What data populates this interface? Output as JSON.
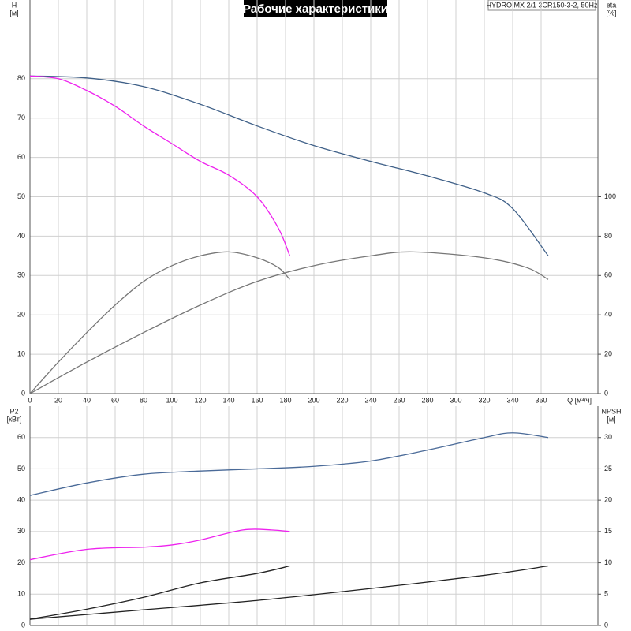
{
  "chart_data": [
    {
      "type": "line",
      "title": "Рабочие характеристики",
      "annotation": "HYDRO MX 2/1 3CR150-3-2, 50Hz",
      "xlabel": "Q [м³/ч]",
      "ylabel": "H",
      "yunit": "[м]",
      "y2label": "eta",
      "y2unit": "[%]",
      "xlim": [
        0,
        400
      ],
      "xticks": [
        0,
        20,
        40,
        60,
        80,
        100,
        120,
        140,
        160,
        180,
        200,
        220,
        240,
        260,
        280,
        300,
        320,
        340,
        360
      ],
      "ylim": [
        0,
        100
      ],
      "yticks": [
        0,
        10,
        20,
        30,
        40,
        50,
        60,
        70,
        80
      ],
      "y2lim": [
        0,
        200
      ],
      "y2ticks": [
        0,
        20,
        40,
        60,
        80,
        100
      ],
      "grid": true,
      "series": [
        {
          "color": "#3f6088",
          "x": [
            0,
            40,
            80,
            120,
            160,
            200,
            240,
            280,
            320,
            340,
            365
          ],
          "values": [
            80.7,
            80.2,
            78,
            73.5,
            68,
            63,
            59,
            55.3,
            51,
            47,
            35
          ]
        },
        {
          "color": "#ee22ee",
          "x": [
            0,
            20,
            40,
            60,
            80,
            100,
            120,
            140,
            160,
            175,
            183
          ],
          "values": [
            80.7,
            80,
            77,
            73,
            68,
            63.5,
            59,
            55.5,
            50,
            42,
            35
          ]
        },
        {
          "color": "#777777",
          "axis": "y2",
          "x": [
            0,
            20,
            40,
            60,
            80,
            100,
            120,
            140,
            160,
            175,
            183
          ],
          "values": [
            0,
            16,
            31,
            45,
            57,
            65,
            70,
            72,
            69,
            64,
            58
          ]
        },
        {
          "color": "#777777",
          "axis": "y2",
          "x": [
            0,
            40,
            80,
            120,
            160,
            200,
            240,
            270,
            320,
            350,
            365
          ],
          "values": [
            0,
            16,
            31,
            45,
            57,
            65,
            70,
            72,
            69,
            64,
            58
          ]
        }
      ]
    },
    {
      "type": "line",
      "ylabel": "P2",
      "yunit": "[кВт]",
      "y2label": "NPSH",
      "y2unit": "[м]",
      "xlim": [
        0,
        400
      ],
      "xticks": [
        0,
        20,
        40,
        60,
        80,
        100,
        120,
        140,
        160,
        180,
        200,
        220,
        240,
        260,
        280,
        300,
        320,
        340,
        360
      ],
      "ylim": [
        0,
        70
      ],
      "yticks": [
        0,
        10,
        20,
        30,
        40,
        50,
        60
      ],
      "y2lim": [
        0,
        35
      ],
      "y2ticks": [
        0,
        5,
        10,
        15,
        20,
        25,
        30
      ],
      "grid": true,
      "series": [
        {
          "color": "#4a6a98",
          "x": [
            0,
            40,
            80,
            120,
            160,
            200,
            240,
            280,
            320,
            340,
            365
          ],
          "values": [
            41.5,
            45.5,
            48.3,
            49.3,
            50,
            50.8,
            52.5,
            56,
            60,
            61.5,
            60
          ]
        },
        {
          "color": "#ee22ee",
          "x": [
            0,
            40,
            80,
            100,
            120,
            150,
            170,
            183
          ],
          "values": [
            21,
            24.3,
            25,
            25.7,
            27.3,
            30.5,
            30.5,
            30
          ]
        },
        {
          "color": "#222222",
          "axis": "y2",
          "x": [
            0,
            40,
            80,
            120,
            160,
            183
          ],
          "values": [
            1,
            2.6,
            4.5,
            6.8,
            8.3,
            9.5
          ]
        },
        {
          "color": "#222222",
          "axis": "y2",
          "x": [
            0,
            80,
            160,
            240,
            320,
            365
          ],
          "values": [
            1,
            2.5,
            4,
            5.9,
            8,
            9.5
          ]
        }
      ]
    }
  ]
}
